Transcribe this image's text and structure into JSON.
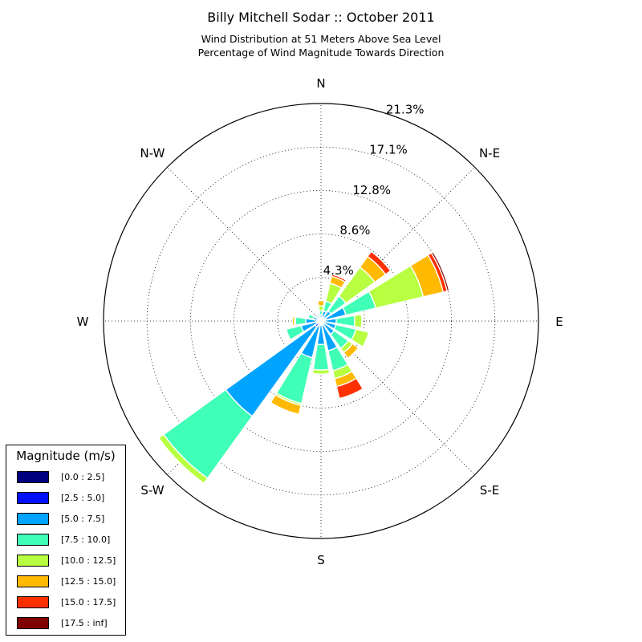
{
  "header": {
    "title": "Billy Mitchell Sodar :: October 2011",
    "subtitle_line1": "Wind Distribution at 51 Meters Above Sea Level",
    "subtitle_line2": "Percentage of Wind Magnitude Towards Direction"
  },
  "legend": {
    "title": "Magnitude (m/s)",
    "bins": [
      {
        "label": "[0.0 : 2.5]",
        "color": "#00007f"
      },
      {
        "label": "[2.5 : 5.0]",
        "color": "#0010ff"
      },
      {
        "label": "[5.0 : 7.5]",
        "color": "#00a4ff"
      },
      {
        "label": "[7.5 : 10.0]",
        "color": "#40ffb7"
      },
      {
        "label": "[10.0 : 12.5]",
        "color": "#b7ff40"
      },
      {
        "label": "[12.5 : 15.0]",
        "color": "#ffb900"
      },
      {
        "label": "[15.0 : 17.5]",
        "color": "#ff3000"
      },
      {
        "label": "[17.5 : inf]",
        "color": "#7f0000"
      }
    ]
  },
  "chart_data": {
    "type": "windrose",
    "title": "Billy Mitchell Sodar :: October 2011",
    "directions": [
      "N",
      "NNE",
      "NE",
      "ENE",
      "E",
      "ESE",
      "SE",
      "SSE",
      "S",
      "SSW",
      "SW",
      "WSW",
      "W",
      "WNW",
      "NW",
      "NNW"
    ],
    "direction_angles_deg": [
      0,
      22.5,
      45,
      67.5,
      90,
      112.5,
      135,
      157.5,
      180,
      202.5,
      225,
      247.5,
      270,
      292.5,
      315,
      337.5
    ],
    "compass_labels": [
      {
        "text": "N",
        "angle": 0
      },
      {
        "text": "N-E",
        "angle": 45
      },
      {
        "text": "E",
        "angle": 90
      },
      {
        "text": "S-E",
        "angle": 135
      },
      {
        "text": "S",
        "angle": 180
      },
      {
        "text": "S-W",
        "angle": 225
      },
      {
        "text": "W",
        "angle": 270
      },
      {
        "text": "N-W",
        "angle": 315
      }
    ],
    "radial_ticks": [
      "4.3%",
      "8.6%",
      "12.8%",
      "17.1%",
      "21.3%"
    ],
    "radial_tick_values": [
      4.26,
      8.52,
      12.78,
      17.04,
      21.3
    ],
    "rmax": 21.3,
    "grid": true,
    "legend_position": "lower-left",
    "series_names": [
      "[0.0 : 2.5]",
      "[2.5 : 5.0]",
      "[5.0 : 7.5]",
      "[7.5 : 10.0]",
      "[10.0 : 12.5]",
      "[12.5 : 15.0]",
      "[15.0 : 17.5]",
      "[17.5 : inf]"
    ],
    "cumulative_percent": [
      [
        0.1,
        0.3,
        0.6,
        1.0,
        1.5,
        2.0,
        2.0,
        2.0
      ],
      [
        0.1,
        0.3,
        1.0,
        2.0,
        3.8,
        4.5,
        4.7,
        4.7
      ],
      [
        0.1,
        0.3,
        1.2,
        3.0,
        6.5,
        7.8,
        8.4,
        8.4
      ],
      [
        0.1,
        0.5,
        2.5,
        5.5,
        10.3,
        12.3,
        12.7,
        12.9
      ],
      [
        0.1,
        0.4,
        1.5,
        3.3,
        4.0,
        4.0,
        4.0,
        4.0
      ],
      [
        0.1,
        0.3,
        1.5,
        3.5,
        4.8,
        4.8,
        4.8,
        4.8
      ],
      [
        0.1,
        0.3,
        1.6,
        3.3,
        3.8,
        4.5,
        4.6,
        4.6
      ],
      [
        0.1,
        0.4,
        3.0,
        5.0,
        5.8,
        6.6,
        7.8,
        7.8
      ],
      [
        0.1,
        0.4,
        2.3,
        4.8,
        5.2,
        5.2,
        5.2,
        5.2
      ],
      [
        0.1,
        0.5,
        3.7,
        8.3,
        8.5,
        9.4,
        9.5,
        9.5
      ],
      [
        0.1,
        0.7,
        11.5,
        19.0,
        19.6,
        19.6,
        19.6,
        19.6
      ],
      [
        0.1,
        0.4,
        2.0,
        3.5,
        3.6,
        3.6,
        3.6,
        3.6
      ],
      [
        0.1,
        0.3,
        1.5,
        2.5,
        2.6,
        2.8,
        2.8,
        2.8
      ],
      [
        0.1,
        0.2,
        0.8,
        1.3,
        1.4,
        1.4,
        1.4,
        1.4
      ],
      [
        0.1,
        0.2,
        0.4,
        0.6,
        0.6,
        0.6,
        0.6,
        0.6
      ],
      [
        0.1,
        0.2,
        0.5,
        0.7,
        0.8,
        0.8,
        0.8,
        0.8
      ]
    ]
  }
}
